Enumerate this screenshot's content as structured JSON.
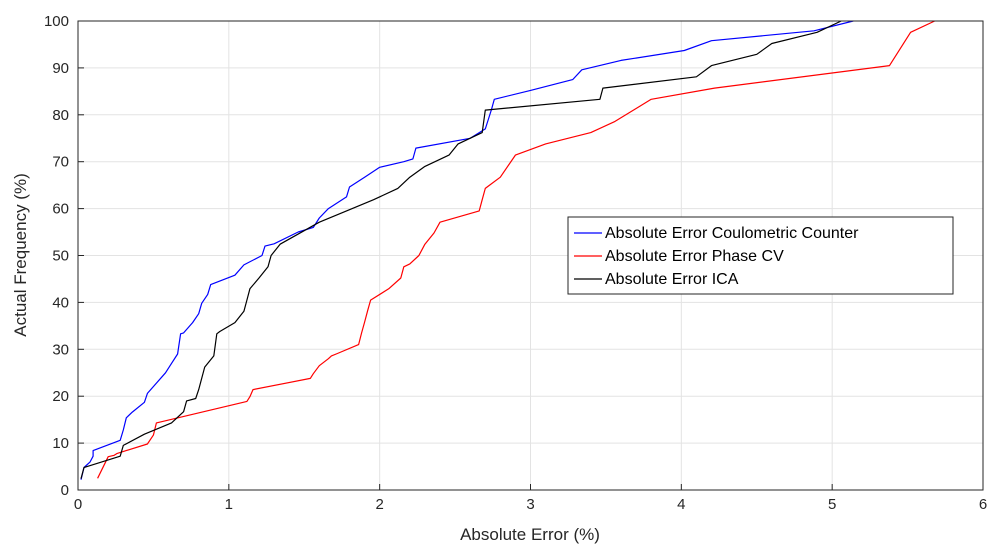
{
  "chart_data": {
    "type": "line",
    "title": "",
    "xlabel": "Absolute Error (%)",
    "ylabel": "Actual Frequency (%)",
    "xlim": [
      0,
      6
    ],
    "ylim": [
      0,
      100
    ],
    "xticks": [
      0,
      1,
      2,
      3,
      4,
      5,
      6
    ],
    "xtick_labels": [
      "0",
      "1",
      "2",
      "3",
      "4",
      "5",
      "6"
    ],
    "yticks": [
      0,
      10,
      20,
      30,
      40,
      50,
      60,
      70,
      80,
      90,
      100
    ],
    "ytick_labels": [
      "0",
      "10",
      "20",
      "30",
      "40",
      "50",
      "60",
      "70",
      "80",
      "90",
      "100"
    ],
    "grid": true,
    "legend_position": "center-right",
    "series": [
      {
        "name": "Absolute Error Coulometric Counter",
        "color": "#0000ff",
        "x": [
          0.02,
          0.04,
          0.08,
          0.1,
          0.1,
          0.28,
          0.3,
          0.32,
          0.36,
          0.44,
          0.46,
          0.58,
          0.62,
          0.66,
          0.68,
          0.7,
          0.76,
          0.8,
          0.82,
          0.86,
          0.88,
          1.04,
          1.1,
          1.22,
          1.24,
          1.3,
          1.46,
          1.56,
          1.6,
          1.66,
          1.78,
          1.8,
          1.9,
          2.0,
          2.16,
          2.22,
          2.24,
          2.6,
          2.7,
          2.72,
          2.74,
          2.76,
          3.0,
          3.28,
          3.34,
          3.6,
          4.02,
          4.2,
          4.88,
          5.14
        ],
        "y": [
          2.2,
          4.8,
          6,
          7.2,
          8.4,
          10.6,
          12.8,
          15.4,
          16.6,
          18.7,
          20.6,
          25,
          27,
          29,
          33.3,
          33.5,
          35.7,
          37.6,
          39.8,
          41.7,
          43.8,
          45.8,
          48,
          50,
          52,
          52.5,
          55,
          56,
          58,
          60,
          62.5,
          64.6,
          66.7,
          68.8,
          70,
          70.6,
          72.9,
          75,
          77,
          79,
          81,
          83.3,
          85.2,
          87.5,
          89.6,
          91.6,
          93.7,
          95.8,
          97.9,
          100
        ]
      },
      {
        "name": "Absolute Error Phase CV",
        "color": "#ff0000",
        "x": [
          0.13,
          0.2,
          0.24,
          0.26,
          0.46,
          0.5,
          0.52,
          1.12,
          1.14,
          1.16,
          1.54,
          1.56,
          1.6,
          1.66,
          1.68,
          1.72,
          1.86,
          1.88,
          1.9,
          1.92,
          1.94,
          2.06,
          2.14,
          2.16,
          2.2,
          2.26,
          2.3,
          2.36,
          2.4,
          2.66,
          2.68,
          2.7,
          2.72,
          2.8,
          2.9,
          3.1,
          3.4,
          3.56,
          3.8,
          4.22,
          5.38,
          5.52,
          5.68
        ],
        "y": [
          2.5,
          7.1,
          7.4,
          7.8,
          9.8,
          11.7,
          14.3,
          18.9,
          19.9,
          21.4,
          23.8,
          24.8,
          26.5,
          28,
          28.6,
          29.1,
          31,
          33.5,
          35.8,
          38.2,
          40.5,
          42.9,
          45.2,
          47.6,
          48.2,
          50,
          52.4,
          54.8,
          57.1,
          59.5,
          61.9,
          64.3,
          64.8,
          66.7,
          71.4,
          73.8,
          76.2,
          78.6,
          83.3,
          85.7,
          90.5,
          97.6,
          100
        ]
      },
      {
        "name": "Absolute Error ICA",
        "color": "#000000",
        "x": [
          0.02,
          0.04,
          0.06,
          0.28,
          0.3,
          0.44,
          0.62,
          0.7,
          0.72,
          0.78,
          0.8,
          0.84,
          0.9,
          0.92,
          0.94,
          1.04,
          1.1,
          1.12,
          1.14,
          1.2,
          1.26,
          1.28,
          1.34,
          1.6,
          1.78,
          1.96,
          2.12,
          2.2,
          2.3,
          2.46,
          2.52,
          2.68,
          2.7,
          3.46,
          3.48,
          4.1,
          4.2,
          4.5,
          4.6,
          4.9,
          5.06
        ],
        "y": [
          2.4,
          4.8,
          5,
          7.2,
          9.5,
          11.9,
          14.3,
          16.7,
          19,
          19.5,
          21.4,
          26.2,
          28.6,
          33.3,
          33.8,
          35.7,
          38.1,
          40.5,
          42.9,
          45.2,
          47.6,
          50,
          52.4,
          57.1,
          59.5,
          61.9,
          64.3,
          66.7,
          69,
          71.4,
          73.8,
          76.2,
          81,
          83.3,
          85.7,
          88.1,
          90.5,
          92.9,
          95.2,
          97.6,
          100
        ]
      }
    ]
  }
}
